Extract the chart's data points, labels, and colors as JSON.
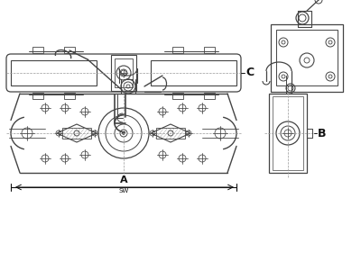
{
  "bg_color": "#ffffff",
  "lc": "#444444",
  "dc": "#111111",
  "llc": "#999999",
  "label_A": "A",
  "label_SW": "SW",
  "label_B": "B",
  "label_C": "C",
  "fig_w": 4.0,
  "fig_h": 3.0,
  "dpi": 100
}
